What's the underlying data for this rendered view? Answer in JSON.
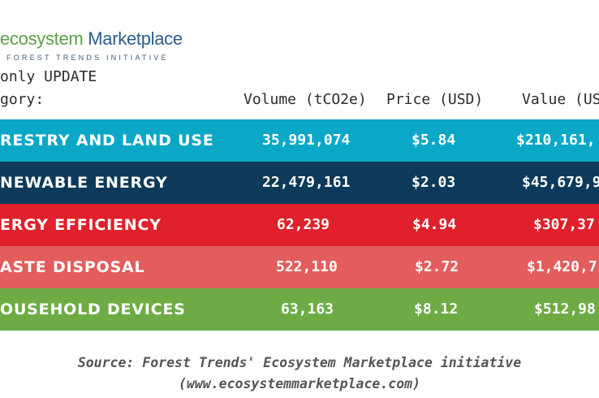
{
  "logo": {
    "main_part1": "ecosystem",
    "main_part2": "Marketplace",
    "sub": "FOREST TRENDS INITIATIVE"
  },
  "subtitle": "only UPDATE",
  "category_header": "gory:",
  "colors": {
    "forestry": "#0aa8c6",
    "renewable": "#0d3a5a",
    "efficiency": "#e0202a",
    "waste": "#e35d5d",
    "household": "#6eab45"
  },
  "chart_data": {
    "type": "table",
    "columns": [
      "Volume (tCO2e)",
      "Price (USD)",
      "Value (US"
    ],
    "rows": [
      {
        "category": "RESTRY AND LAND USE",
        "volume": "35,991,074",
        "price": "$5.84",
        "value": "$210,161,",
        "color_key": "forestry"
      },
      {
        "category": "NEWABLE ENERGY",
        "volume": "22,479,161",
        "price": "$2.03",
        "value": "$45,679,9",
        "color_key": "renewable"
      },
      {
        "category": "ERGY EFFICIENCY",
        "volume": "62,239",
        "price": "$4.94",
        "value": "$307,37",
        "color_key": "efficiency"
      },
      {
        "category": "ASTE DISPOSAL",
        "volume": "522,110",
        "price": "$2.72",
        "value": "$1,420,7",
        "color_key": "waste"
      },
      {
        "category": "OUSEHOLD DEVICES",
        "volume": "63,163",
        "price": "$8.12",
        "value": "$512,98",
        "color_key": "household"
      }
    ]
  },
  "source_line1": "Source: Forest Trends' Ecosystem Marketplace initiative",
  "source_line2": "(www.ecosystemmarketplace.com)"
}
